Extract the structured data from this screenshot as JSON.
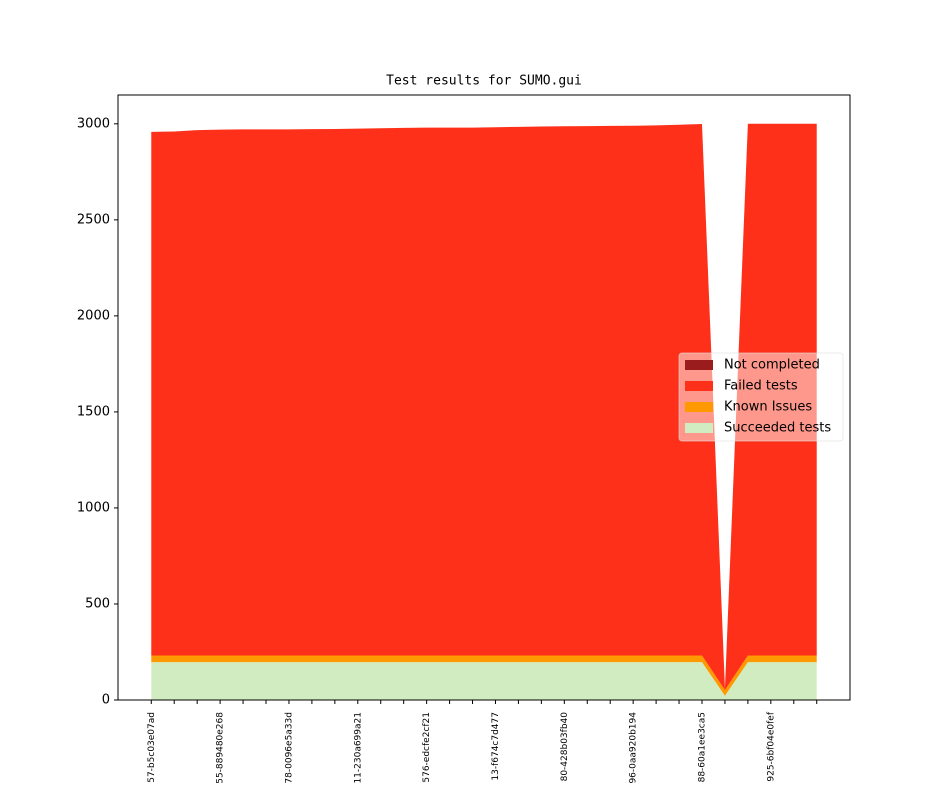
{
  "chart_data": {
    "type": "stacked-area",
    "title": "Test results for SUMO.gui",
    "categories": [
      "57-b5c03e07ad",
      null,
      null,
      "55-889480e268",
      null,
      null,
      "78-0096e5a33d",
      null,
      null,
      "11-230a699a21",
      null,
      null,
      "576-edcfe2cf21",
      null,
      null,
      "13-f674c7d477",
      null,
      null,
      "80-428b03fb40",
      null,
      null,
      "96-0aa920b194",
      null,
      null,
      "88-60a1ee3ca5",
      null,
      null,
      "925-6bf04e0fef",
      null,
      null
    ],
    "series": [
      {
        "name": "Succeeded tests",
        "color": "#d1ecc0",
        "values": [
          197,
          197,
          197,
          197,
          197,
          197,
          197,
          197,
          197,
          197,
          197,
          197,
          197,
          197,
          197,
          197,
          197,
          197,
          197,
          197,
          197,
          197,
          197,
          197,
          197,
          22,
          197,
          197,
          197,
          197
        ]
      },
      {
        "name": "Known Issues",
        "color": "#ff9900",
        "values": [
          35,
          35,
          35,
          35,
          35,
          35,
          35,
          35,
          35,
          35,
          35,
          35,
          35,
          35,
          35,
          35,
          35,
          35,
          35,
          35,
          35,
          35,
          35,
          35,
          35,
          30,
          35,
          35,
          35,
          35
        ]
      },
      {
        "name": "Failed tests",
        "color": "#ff3019",
        "values": [
          2726,
          2728,
          2735,
          2738,
          2739,
          2739,
          2739,
          2740,
          2741,
          2743,
          2745,
          2747,
          2748,
          2748,
          2748,
          2750,
          2752,
          2754,
          2755,
          2756,
          2757,
          2758,
          2760,
          2763,
          2767,
          8,
          2768,
          2768,
          2768,
          2768
        ]
      },
      {
        "name": "Not completed",
        "color": "#9b1c1c",
        "values": [
          0,
          0,
          0,
          0,
          0,
          0,
          0,
          0,
          0,
          0,
          0,
          0,
          0,
          0,
          0,
          0,
          0,
          0,
          0,
          0,
          0,
          0,
          0,
          0,
          0,
          0,
          0,
          0,
          0,
          0
        ]
      }
    ],
    "ylim": [
      0,
      3150
    ],
    "yticks": [
      0,
      500,
      1000,
      1500,
      2000,
      2500,
      3000
    ],
    "legend": "center right"
  }
}
